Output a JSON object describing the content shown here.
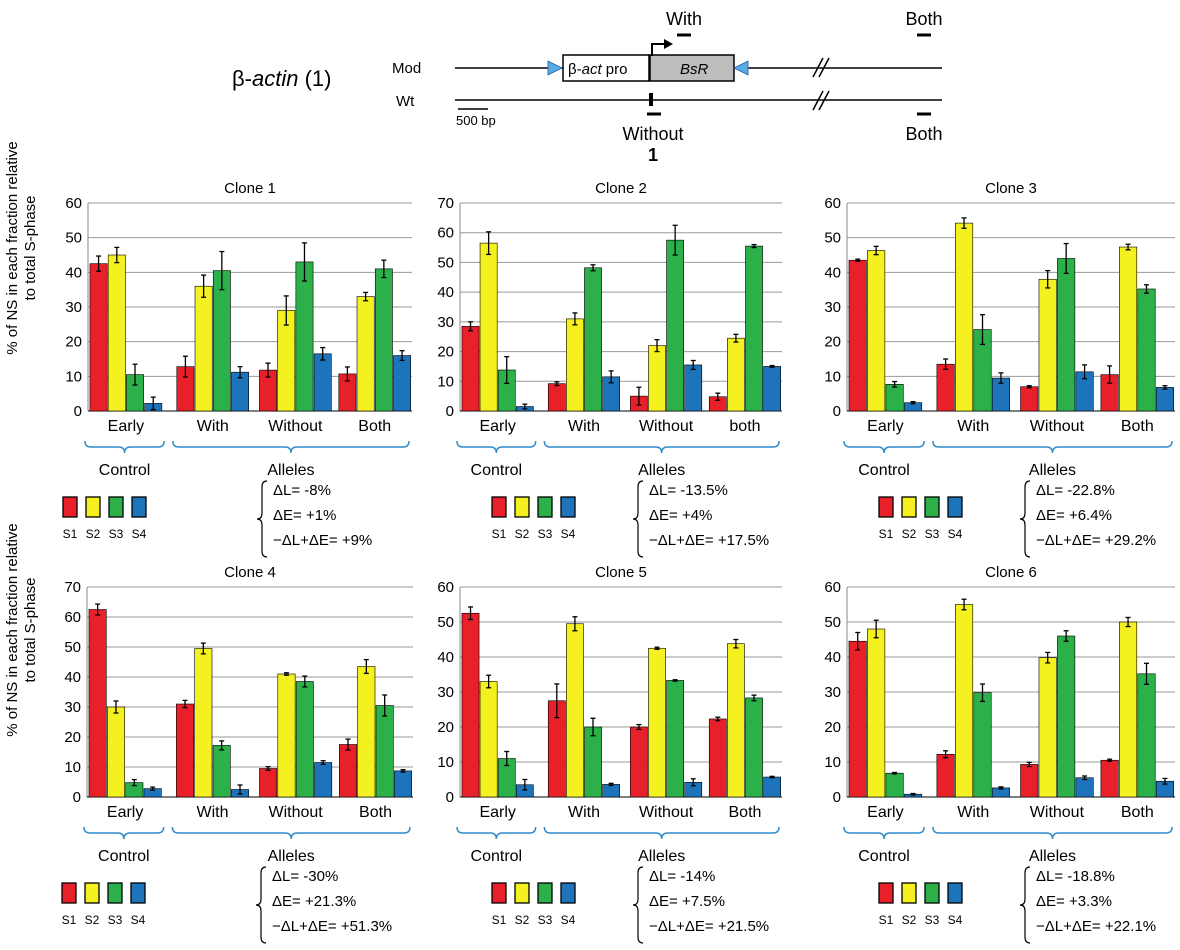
{
  "header": {
    "construct_label_prefix": "β-",
    "construct_label_gene": "actin",
    "construct_label_suffix": " (1)",
    "mod_label": "Mod",
    "wt_label": "Wt",
    "promoter_label_prefix": "β-",
    "promoter_label_gene": "act",
    "promoter_label_suffix": " pro",
    "resistance_label": "BsR",
    "scale_label": "500 bp",
    "probe_with_label": "With",
    "probe_both_top_label": "Both",
    "probe_without_label": "Without",
    "probe_both_bottom_label": "Both",
    "probe_number": "1"
  },
  "y_axis_label": {
    "line1": "% of NS in each fraction relative",
    "line2": "to total S-phase"
  },
  "colors": {
    "S1": "#e8202a",
    "S2": "#f5f020",
    "S3": "#2bb04a",
    "S4": "#1d74bb",
    "bracket": "#2f8bc9"
  },
  "legend_labels": [
    "S1",
    "S2",
    "S3",
    "S4"
  ],
  "chart_data": [
    {
      "type": "bar",
      "title": "Clone 1",
      "ylim": [
        0,
        60
      ],
      "yticks": [
        0,
        10,
        20,
        30,
        40,
        50,
        60
      ],
      "categories": [
        "Early",
        "With",
        "Without",
        "Both"
      ],
      "group_labels": {
        "control": "Control",
        "alleles": "Alleles"
      },
      "series": [
        {
          "name": "S1",
          "values": [
            42.5,
            12.8,
            11.8,
            10.7
          ],
          "errors": [
            2.2,
            3.0,
            2.0,
            2.0
          ]
        },
        {
          "name": "S2",
          "values": [
            45,
            36,
            29,
            33
          ],
          "errors": [
            2.2,
            3.2,
            4.2,
            1.2
          ]
        },
        {
          "name": "S3",
          "values": [
            10.5,
            40.5,
            43,
            41
          ],
          "errors": [
            3.0,
            5.5,
            5.5,
            2.5
          ]
        },
        {
          "name": "S4",
          "values": [
            2.2,
            11.2,
            16.5,
            16
          ],
          "errors": [
            1.8,
            1.6,
            1.8,
            1.4
          ]
        }
      ],
      "stats": [
        "ΔL= -8%",
        "ΔE= +1%",
        "−ΔL+ΔE= +9%"
      ]
    },
    {
      "type": "bar",
      "title": "Clone 2",
      "ylim": [
        0,
        70
      ],
      "yticks": [
        0,
        10,
        20,
        30,
        40,
        50,
        60,
        70
      ],
      "categories": [
        "Early",
        "With",
        "Without",
        "both"
      ],
      "group_labels": {
        "control": "Control",
        "alleles": "Alleles"
      },
      "series": [
        {
          "name": "S1",
          "values": [
            28.5,
            9.2,
            5,
            4.8
          ],
          "errors": [
            1.5,
            0.6,
            3.0,
            1.2
          ]
        },
        {
          "name": "S2",
          "values": [
            56.5,
            31,
            22,
            24.5
          ],
          "errors": [
            3.8,
            2.0,
            2.0,
            1.3
          ]
        },
        {
          "name": "S3",
          "values": [
            13.8,
            48.2,
            57.5,
            55.5
          ],
          "errors": [
            4.5,
            1.0,
            5.0,
            0.5
          ]
        },
        {
          "name": "S4",
          "values": [
            1.5,
            11.5,
            15.5,
            15
          ],
          "errors": [
            0.8,
            2.0,
            1.5,
            0.3
          ]
        }
      ],
      "stats": [
        "ΔL= -13.5%",
        "ΔE= +4%",
        "−ΔL+ΔE= +17.5%"
      ]
    },
    {
      "type": "bar",
      "title": "Clone 3",
      "ylim": [
        0,
        60
      ],
      "yticks": [
        0,
        10,
        20,
        30,
        40,
        50,
        60
      ],
      "categories": [
        "Early",
        "With",
        "Without",
        "Both"
      ],
      "group_labels": {
        "control": "Control",
        "alleles": "Alleles"
      },
      "series": [
        {
          "name": "S1",
          "values": [
            43.5,
            13.5,
            7,
            10.5
          ],
          "errors": [
            0.3,
            1.5,
            0.3,
            2.5
          ]
        },
        {
          "name": "S2",
          "values": [
            46.3,
            54.2,
            38,
            47.3
          ],
          "errors": [
            1.2,
            1.5,
            2.5,
            0.8
          ]
        },
        {
          "name": "S3",
          "values": [
            7.7,
            23.5,
            44,
            35.2
          ],
          "errors": [
            0.8,
            4.3,
            4.3,
            1.2
          ]
        },
        {
          "name": "S4",
          "values": [
            2.4,
            9.5,
            11.3,
            6.8
          ],
          "errors": [
            0.3,
            1.5,
            2.0,
            0.5
          ]
        }
      ],
      "stats": [
        "ΔL= -22.8%",
        "ΔE= +6.4%",
        "−ΔL+ΔE= +29.2%"
      ]
    },
    {
      "type": "bar",
      "title": "Clone 4",
      "ylim": [
        0,
        70
      ],
      "yticks": [
        0,
        10,
        20,
        30,
        40,
        50,
        60,
        70
      ],
      "categories": [
        "Early",
        "With",
        "Without",
        "Both"
      ],
      "group_labels": {
        "control": "Control",
        "alleles": "Alleles"
      },
      "series": [
        {
          "name": "S1",
          "values": [
            62.5,
            31,
            9.5,
            17.5
          ],
          "errors": [
            1.8,
            1.2,
            0.6,
            1.8
          ]
        },
        {
          "name": "S2",
          "values": [
            30,
            49.5,
            41,
            43.5
          ],
          "errors": [
            2.0,
            1.8,
            0.4,
            2.3
          ]
        },
        {
          "name": "S3",
          "values": [
            4.8,
            17.2,
            38.5,
            30.5
          ],
          "errors": [
            1.0,
            1.5,
            1.8,
            3.5
          ]
        },
        {
          "name": "S4",
          "values": [
            2.8,
            2.5,
            11.5,
            8.7
          ],
          "errors": [
            0.5,
            1.5,
            0.6,
            0.4
          ]
        }
      ],
      "stats": [
        "ΔL= -30%",
        "ΔE= +21.3%",
        "−ΔL+ΔE= +51.3%"
      ]
    },
    {
      "type": "bar",
      "title": "Clone 5",
      "ylim": [
        0,
        60
      ],
      "yticks": [
        0,
        10,
        20,
        30,
        40,
        50,
        60
      ],
      "categories": [
        "Early",
        "With",
        "Without",
        "Both"
      ],
      "group_labels": {
        "control": "Control",
        "alleles": "Alleles"
      },
      "series": [
        {
          "name": "S1",
          "values": [
            52.5,
            27.5,
            20,
            22.3
          ],
          "errors": [
            1.8,
            4.8,
            0.7,
            0.5
          ]
        },
        {
          "name": "S2",
          "values": [
            33,
            49.5,
            42.5,
            43.8
          ],
          "errors": [
            1.8,
            2.0,
            0.3,
            1.2
          ]
        },
        {
          "name": "S3",
          "values": [
            11,
            20,
            33.3,
            28.3
          ],
          "errors": [
            2.0,
            2.5,
            0.2,
            0.8
          ]
        },
        {
          "name": "S4",
          "values": [
            3.5,
            3.6,
            4.2,
            5.7
          ],
          "errors": [
            1.5,
            0.3,
            1.0,
            0.2
          ]
        }
      ],
      "stats": [
        "ΔL= -14%",
        "ΔE= +7.5%",
        "−ΔL+ΔE= +21.5%"
      ]
    },
    {
      "type": "bar",
      "title": "Clone 6",
      "ylim": [
        0,
        60
      ],
      "yticks": [
        0,
        10,
        20,
        30,
        40,
        50,
        60
      ],
      "categories": [
        "Early",
        "With",
        "Without",
        "Both"
      ],
      "group_labels": {
        "control": "Control",
        "alleles": "Alleles"
      },
      "series": [
        {
          "name": "S1",
          "values": [
            44.5,
            12.2,
            9.3,
            10.5
          ],
          "errors": [
            2.5,
            1.0,
            0.6,
            0.3
          ]
        },
        {
          "name": "S2",
          "values": [
            48,
            55,
            39.8,
            50
          ],
          "errors": [
            2.5,
            1.5,
            1.5,
            1.3
          ]
        },
        {
          "name": "S3",
          "values": [
            6.8,
            29.8,
            46,
            35.2
          ],
          "errors": [
            0.2,
            2.5,
            1.5,
            3.0
          ]
        },
        {
          "name": "S4",
          "values": [
            0.8,
            2.6,
            5.5,
            4.5
          ],
          "errors": [
            0.2,
            0.3,
            0.5,
            0.8
          ]
        }
      ],
      "stats": [
        "ΔL= -18.8%",
        "ΔE= +3.3%",
        "−ΔL+ΔE= +22.1%"
      ]
    }
  ]
}
